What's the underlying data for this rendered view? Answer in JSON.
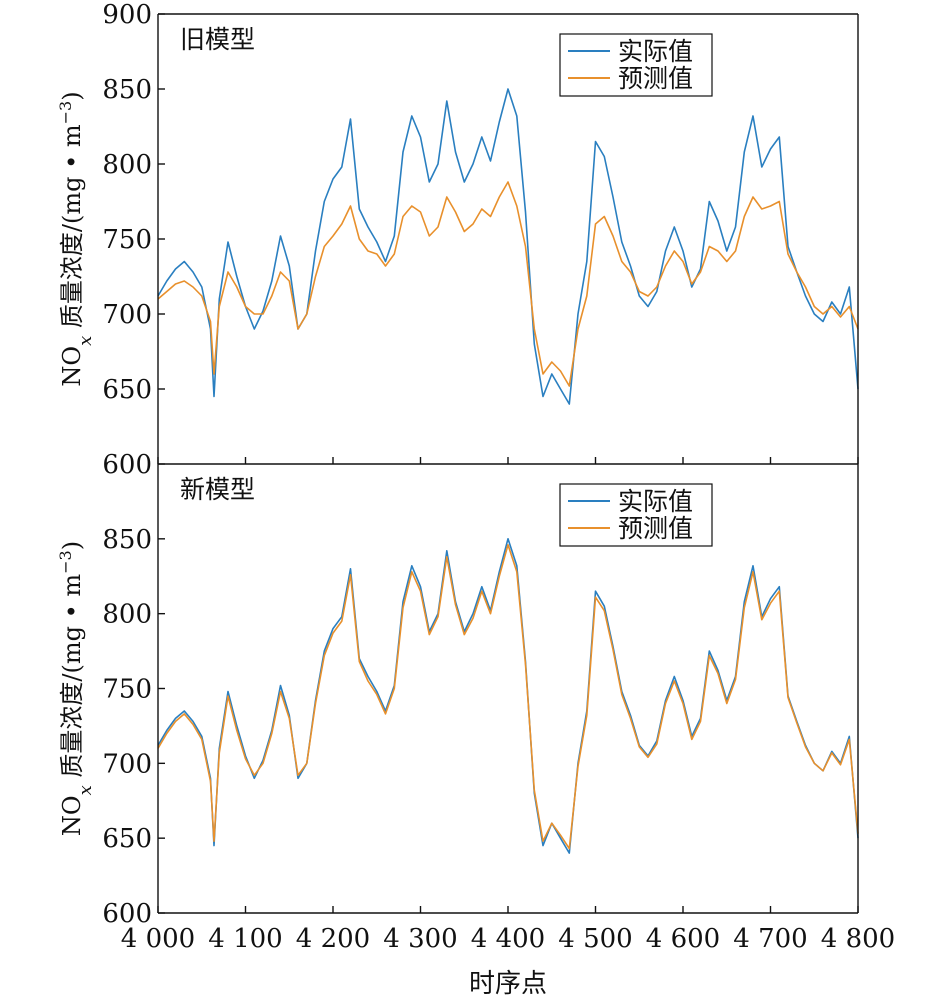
{
  "chart_data": [
    {
      "type": "line",
      "title": "旧模型",
      "ylabel_main": "NO",
      "ylabel_sub": "x",
      "ylabel_rest": " 质量浓度/(mg • m",
      "ylabel_exp": "−3",
      "ylabel_close": ")",
      "ylim": [
        600,
        900
      ],
      "yticks": [
        600,
        650,
        700,
        750,
        800,
        850,
        900
      ],
      "xlim": [
        4000,
        4800
      ],
      "xticks": [
        4000,
        4100,
        4200,
        4300,
        4400,
        4500,
        4600,
        4700,
        4800
      ],
      "legend_position": "top-right",
      "series": [
        {
          "name": "实际值",
          "color": "#2a7fc0",
          "x": [
            4000,
            4010,
            4020,
            4030,
            4040,
            4050,
            4060,
            4064,
            4070,
            4080,
            4090,
            4100,
            4110,
            4120,
            4130,
            4140,
            4150,
            4160,
            4170,
            4180,
            4190,
            4200,
            4210,
            4220,
            4230,
            4240,
            4250,
            4260,
            4270,
            4280,
            4290,
            4300,
            4310,
            4320,
            4330,
            4340,
            4350,
            4360,
            4370,
            4380,
            4390,
            4400,
            4410,
            4420,
            4430,
            4440,
            4450,
            4460,
            4470,
            4480,
            4490,
            4500,
            4510,
            4520,
            4530,
            4540,
            4550,
            4560,
            4570,
            4580,
            4590,
            4600,
            4610,
            4620,
            4630,
            4640,
            4650,
            4660,
            4670,
            4680,
            4690,
            4700,
            4710,
            4720,
            4730,
            4740,
            4750,
            4760,
            4770,
            4780,
            4790,
            4800
          ],
          "y": [
            712,
            722,
            730,
            735,
            728,
            718,
            690,
            645,
            710,
            748,
            725,
            705,
            690,
            702,
            722,
            752,
            732,
            690,
            700,
            742,
            775,
            790,
            798,
            830,
            770,
            758,
            748,
            735,
            752,
            808,
            832,
            818,
            788,
            800,
            842,
            808,
            788,
            800,
            818,
            802,
            828,
            850,
            832,
            768,
            680,
            645,
            660,
            650,
            640,
            700,
            735,
            815,
            805,
            778,
            748,
            732,
            712,
            705,
            715,
            742,
            758,
            742,
            718,
            730,
            775,
            762,
            742,
            758,
            808,
            832,
            798,
            810,
            818,
            745,
            728,
            712,
            700,
            695,
            708,
            700,
            718,
            650
          ],
          "values": [
            712,
            722,
            730,
            735,
            728,
            718,
            690,
            645,
            710,
            748,
            725,
            705,
            690,
            702,
            722,
            752,
            732,
            690,
            700,
            742,
            775,
            790,
            798,
            830,
            770,
            758,
            748,
            735,
            752,
            808,
            832,
            818,
            788,
            800,
            842,
            808,
            788,
            800,
            818,
            802,
            828,
            850,
            832,
            768,
            680,
            645,
            660,
            650,
            640,
            700,
            735,
            815,
            805,
            778,
            748,
            732,
            712,
            705,
            715,
            742,
            758,
            742,
            718,
            730,
            775,
            762,
            742,
            758,
            808,
            832,
            798,
            810,
            818,
            745,
            728,
            712,
            700,
            695,
            708,
            700,
            718,
            650
          ]
        },
        {
          "name": "预测值",
          "color": "#e8902c",
          "x": [
            4000,
            4010,
            4020,
            4030,
            4040,
            4050,
            4060,
            4064,
            4070,
            4080,
            4090,
            4100,
            4110,
            4120,
            4130,
            4140,
            4150,
            4160,
            4170,
            4180,
            4190,
            4200,
            4210,
            4220,
            4230,
            4240,
            4250,
            4260,
            4270,
            4280,
            4290,
            4300,
            4310,
            4320,
            4330,
            4340,
            4350,
            4360,
            4370,
            4380,
            4390,
            4400,
            4410,
            4420,
            4430,
            4440,
            4450,
            4460,
            4470,
            4480,
            4490,
            4500,
            4510,
            4520,
            4530,
            4540,
            4550,
            4560,
            4570,
            4580,
            4590,
            4600,
            4610,
            4620,
            4630,
            4640,
            4650,
            4660,
            4670,
            4680,
            4690,
            4700,
            4710,
            4720,
            4730,
            4740,
            4750,
            4760,
            4770,
            4780,
            4790,
            4800
          ],
          "y": [
            710,
            715,
            720,
            722,
            718,
            712,
            695,
            660,
            705,
            728,
            718,
            705,
            700,
            700,
            712,
            728,
            722,
            690,
            700,
            725,
            745,
            752,
            760,
            772,
            750,
            742,
            740,
            732,
            740,
            765,
            772,
            768,
            752,
            758,
            778,
            768,
            755,
            760,
            770,
            765,
            778,
            788,
            772,
            745,
            690,
            660,
            668,
            662,
            652,
            690,
            712,
            760,
            765,
            752,
            735,
            728,
            715,
            712,
            718,
            732,
            742,
            735,
            720,
            728,
            745,
            742,
            735,
            742,
            765,
            778,
            770,
            772,
            775,
            740,
            728,
            718,
            705,
            700,
            705,
            698,
            705,
            690
          ],
          "values": [
            710,
            715,
            720,
            722,
            718,
            712,
            695,
            660,
            705,
            728,
            718,
            705,
            700,
            700,
            712,
            728,
            722,
            690,
            700,
            725,
            745,
            752,
            760,
            772,
            750,
            742,
            740,
            732,
            740,
            765,
            772,
            768,
            752,
            758,
            778,
            768,
            755,
            760,
            770,
            765,
            778,
            788,
            772,
            745,
            690,
            660,
            668,
            662,
            652,
            690,
            712,
            760,
            765,
            752,
            735,
            728,
            715,
            712,
            718,
            732,
            742,
            735,
            720,
            728,
            745,
            742,
            735,
            742,
            765,
            778,
            770,
            772,
            775,
            740,
            728,
            718,
            705,
            700,
            705,
            698,
            705,
            690
          ]
        }
      ]
    },
    {
      "type": "line",
      "title": "新模型",
      "ylabel_main": "NO",
      "ylabel_sub": "x",
      "ylabel_rest": " 质量浓度/(mg • m",
      "ylabel_exp": "−3",
      "ylabel_close": ")",
      "xlabel": "时序点",
      "ylim": [
        600,
        900
      ],
      "yticks": [
        600,
        650,
        700,
        750,
        800,
        850
      ],
      "xlim": [
        4000,
        4800
      ],
      "xticks": [
        4000,
        4100,
        4200,
        4300,
        4400,
        4500,
        4600,
        4700,
        4800
      ],
      "xtick_labels": [
        "4 000",
        "4 100",
        "4 200",
        "4 300",
        "4 400",
        "4 500",
        "4 600",
        "4 700",
        "4 800"
      ],
      "legend_position": "top-right",
      "series": [
        {
          "name": "实际值",
          "color": "#2a7fc0",
          "x": [
            4000,
            4010,
            4020,
            4030,
            4040,
            4050,
            4060,
            4064,
            4070,
            4080,
            4090,
            4100,
            4110,
            4120,
            4130,
            4140,
            4150,
            4160,
            4170,
            4180,
            4190,
            4200,
            4210,
            4220,
            4230,
            4240,
            4250,
            4260,
            4270,
            4280,
            4290,
            4300,
            4310,
            4320,
            4330,
            4340,
            4350,
            4360,
            4370,
            4380,
            4390,
            4400,
            4410,
            4420,
            4430,
            4440,
            4450,
            4460,
            4470,
            4480,
            4490,
            4500,
            4510,
            4520,
            4530,
            4540,
            4550,
            4560,
            4570,
            4580,
            4590,
            4600,
            4610,
            4620,
            4630,
            4640,
            4650,
            4660,
            4670,
            4680,
            4690,
            4700,
            4710,
            4720,
            4730,
            4740,
            4750,
            4760,
            4770,
            4780,
            4790,
            4800
          ],
          "y": [
            712,
            722,
            730,
            735,
            728,
            718,
            690,
            645,
            710,
            748,
            725,
            705,
            690,
            702,
            722,
            752,
            732,
            690,
            700,
            742,
            775,
            790,
            798,
            830,
            770,
            758,
            748,
            735,
            752,
            808,
            832,
            818,
            788,
            800,
            842,
            808,
            788,
            800,
            818,
            802,
            828,
            850,
            832,
            768,
            680,
            645,
            660,
            650,
            640,
            700,
            735,
            815,
            805,
            778,
            748,
            732,
            712,
            705,
            715,
            742,
            758,
            742,
            718,
            730,
            775,
            762,
            742,
            758,
            808,
            832,
            798,
            810,
            818,
            745,
            728,
            712,
            700,
            695,
            708,
            700,
            718,
            650
          ],
          "values": [
            712,
            722,
            730,
            735,
            728,
            718,
            690,
            645,
            710,
            748,
            725,
            705,
            690,
            702,
            722,
            752,
            732,
            690,
            700,
            742,
            775,
            790,
            798,
            830,
            770,
            758,
            748,
            735,
            752,
            808,
            832,
            818,
            788,
            800,
            842,
            808,
            788,
            800,
            818,
            802,
            828,
            850,
            832,
            768,
            680,
            645,
            660,
            650,
            640,
            700,
            735,
            815,
            805,
            778,
            748,
            732,
            712,
            705,
            715,
            742,
            758,
            742,
            718,
            730,
            775,
            762,
            742,
            758,
            808,
            832,
            798,
            810,
            818,
            745,
            728,
            712,
            700,
            695,
            708,
            700,
            718,
            650
          ]
        },
        {
          "name": "预测值",
          "color": "#e8902c",
          "x": [
            4000,
            4010,
            4020,
            4030,
            4040,
            4050,
            4060,
            4064,
            4070,
            4080,
            4090,
            4100,
            4110,
            4120,
            4130,
            4140,
            4150,
            4160,
            4170,
            4180,
            4190,
            4200,
            4210,
            4220,
            4230,
            4240,
            4250,
            4260,
            4270,
            4280,
            4290,
            4300,
            4310,
            4320,
            4330,
            4340,
            4350,
            4360,
            4370,
            4380,
            4390,
            4400,
            4410,
            4420,
            4430,
            4440,
            4450,
            4460,
            4470,
            4480,
            4490,
            4500,
            4510,
            4520,
            4530,
            4540,
            4550,
            4560,
            4570,
            4580,
            4590,
            4600,
            4610,
            4620,
            4630,
            4640,
            4650,
            4660,
            4670,
            4680,
            4690,
            4700,
            4710,
            4720,
            4730,
            4740,
            4750,
            4760,
            4770,
            4780,
            4790,
            4800
          ],
          "y": [
            710,
            720,
            728,
            733,
            726,
            716,
            688,
            648,
            707,
            745,
            722,
            703,
            692,
            700,
            720,
            748,
            730,
            692,
            700,
            740,
            772,
            787,
            795,
            826,
            768,
            755,
            746,
            733,
            750,
            804,
            828,
            815,
            786,
            798,
            838,
            806,
            786,
            797,
            815,
            800,
            825,
            846,
            828,
            766,
            682,
            648,
            660,
            652,
            643,
            698,
            732,
            811,
            802,
            776,
            746,
            730,
            711,
            704,
            713,
            740,
            755,
            740,
            716,
            728,
            772,
            760,
            740,
            756,
            804,
            828,
            796,
            807,
            815,
            744,
            727,
            711,
            700,
            695,
            707,
            699,
            716,
            653
          ],
          "values": [
            710,
            720,
            728,
            733,
            726,
            716,
            688,
            648,
            707,
            745,
            722,
            703,
            692,
            700,
            720,
            748,
            730,
            692,
            700,
            740,
            772,
            787,
            795,
            826,
            768,
            755,
            746,
            733,
            750,
            804,
            828,
            815,
            786,
            798,
            838,
            806,
            786,
            797,
            815,
            800,
            825,
            846,
            828,
            766,
            682,
            648,
            660,
            652,
            643,
            698,
            732,
            811,
            802,
            776,
            746,
            730,
            711,
            704,
            713,
            740,
            755,
            740,
            716,
            728,
            772,
            760,
            740,
            756,
            804,
            828,
            796,
            807,
            815,
            744,
            727,
            711,
            700,
            695,
            707,
            699,
            716,
            653
          ]
        }
      ]
    }
  ]
}
